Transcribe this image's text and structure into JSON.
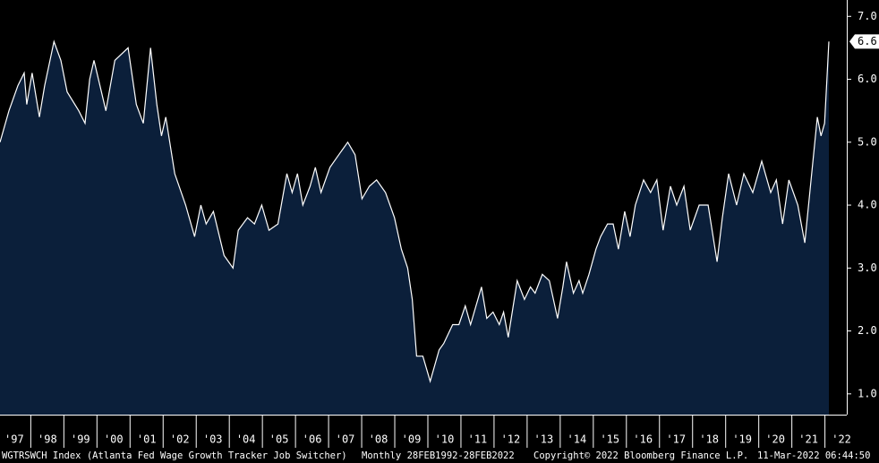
{
  "chart_data": {
    "type": "area",
    "x": [
      1997.07,
      1997.34,
      1997.61,
      1997.8,
      1997.88,
      1998.04,
      1998.26,
      1998.42,
      1998.7,
      1998.91,
      1999.1,
      1999.45,
      1999.64,
      1999.78,
      1999.91,
      2000.27,
      2000.54,
      2000.94,
      2001.19,
      2001.4,
      2001.62,
      2001.81,
      2001.95,
      2002.08,
      2002.35,
      2002.68,
      2002.95,
      2003.14,
      2003.3,
      2003.52,
      2003.84,
      2004.11,
      2004.27,
      2004.55,
      2004.76,
      2004.98,
      2005.2,
      2005.47,
      2005.74,
      2005.9,
      2006.06,
      2006.22,
      2006.44,
      2006.6,
      2006.77,
      2007.04,
      2007.31,
      2007.58,
      2007.8,
      2008.01,
      2008.23,
      2008.45,
      2008.72,
      2008.99,
      2009.2,
      2009.39,
      2009.53,
      2009.66,
      2009.85,
      2010.07,
      2010.34,
      2010.48,
      2010.75,
      2010.94,
      2011.13,
      2011.29,
      2011.62,
      2011.78,
      2011.97,
      2012.16,
      2012.29,
      2012.43,
      2012.7,
      2012.92,
      2013.1,
      2013.24,
      2013.46,
      2013.67,
      2013.92,
      2014.08,
      2014.19,
      2014.4,
      2014.57,
      2014.68,
      2014.87,
      2015.08,
      2015.22,
      2015.43,
      2015.6,
      2015.76,
      2015.95,
      2016.11,
      2016.27,
      2016.52,
      2016.73,
      2016.92,
      2017.11,
      2017.33,
      2017.52,
      2017.74,
      2017.93,
      2018.2,
      2018.47,
      2018.74,
      2018.9,
      2019.09,
      2019.33,
      2019.55,
      2019.82,
      2020.09,
      2020.36,
      2020.53,
      2020.72,
      2020.91,
      2021.18,
      2021.39,
      2021.58,
      2021.77,
      2021.88,
      2021.99,
      2022.06,
      2022.12
    ],
    "values": [
      5.0,
      5.5,
      5.9,
      6.1,
      5.6,
      6.1,
      5.4,
      5.9,
      6.6,
      6.3,
      5.8,
      5.5,
      5.3,
      6.0,
      6.3,
      5.5,
      6.3,
      6.5,
      5.6,
      5.3,
      6.5,
      5.6,
      5.1,
      5.4,
      4.5,
      4.0,
      3.5,
      4.0,
      3.7,
      3.9,
      3.2,
      3.0,
      3.6,
      3.8,
      3.7,
      4.0,
      3.6,
      3.7,
      4.5,
      4.2,
      4.5,
      4.0,
      4.3,
      4.6,
      4.2,
      4.6,
      4.8,
      5.0,
      4.8,
      4.1,
      4.3,
      4.4,
      4.2,
      3.8,
      3.3,
      3.0,
      2.5,
      1.6,
      1.6,
      1.2,
      1.7,
      1.8,
      2.1,
      2.1,
      2.4,
      2.1,
      2.7,
      2.2,
      2.3,
      2.1,
      2.3,
      1.9,
      2.8,
      2.5,
      2.7,
      2.6,
      2.9,
      2.8,
      2.2,
      2.7,
      3.1,
      2.6,
      2.8,
      2.6,
      2.9,
      3.3,
      3.5,
      3.7,
      3.7,
      3.3,
      3.9,
      3.5,
      4.0,
      4.4,
      4.2,
      4.4,
      3.6,
      4.3,
      4.0,
      4.3,
      3.6,
      4.0,
      4.0,
      3.1,
      3.8,
      4.5,
      4.0,
      4.5,
      4.2,
      4.7,
      4.2,
      4.4,
      3.7,
      4.4,
      4.0,
      3.4,
      4.4,
      5.4,
      5.1,
      5.3,
      6.0,
      6.6
    ],
    "color": "#ffffff",
    "fill_color": "#0b1f3a",
    "last_label": "6.6",
    "xlim": [
      1997.07,
      2022.66
    ],
    "ylim": [
      0.67,
      7.26
    ],
    "xticks": [
      {
        "value": 1997,
        "label": "'97"
      },
      {
        "value": 1998,
        "label": "'98"
      },
      {
        "value": 1999,
        "label": "'99"
      },
      {
        "value": 2000,
        "label": "'00"
      },
      {
        "value": 2001,
        "label": "'01"
      },
      {
        "value": 2002,
        "label": "'02"
      },
      {
        "value": 2003,
        "label": "'03"
      },
      {
        "value": 2004,
        "label": "'04"
      },
      {
        "value": 2005,
        "label": "'05"
      },
      {
        "value": 2006,
        "label": "'06"
      },
      {
        "value": 2007,
        "label": "'07"
      },
      {
        "value": 2008,
        "label": "'08"
      },
      {
        "value": 2009,
        "label": "'09"
      },
      {
        "value": 2010,
        "label": "'10"
      },
      {
        "value": 2011,
        "label": "'11"
      },
      {
        "value": 2012,
        "label": "'12"
      },
      {
        "value": 2013,
        "label": "'13"
      },
      {
        "value": 2014,
        "label": "'14"
      },
      {
        "value": 2015,
        "label": "'15"
      },
      {
        "value": 2016,
        "label": "'16"
      },
      {
        "value": 2017,
        "label": "'17"
      },
      {
        "value": 2018,
        "label": "'18"
      },
      {
        "value": 2019,
        "label": "'19"
      },
      {
        "value": 2020,
        "label": "'20"
      },
      {
        "value": 2021,
        "label": "'21"
      },
      {
        "value": 2022,
        "label": "'22"
      }
    ],
    "yticks": [
      {
        "value": 1,
        "label": "1.0"
      },
      {
        "value": 2,
        "label": "2.0"
      },
      {
        "value": 3,
        "label": "3.0"
      },
      {
        "value": 4,
        "label": "4.0"
      },
      {
        "value": 5,
        "label": "5.0"
      },
      {
        "value": 6,
        "label": "6.0"
      },
      {
        "value": 7,
        "label": "7.0"
      }
    ],
    "footer": [
      "WGTRSWCH Index (Atlanta Fed Wage Growth Tracker Job Switcher)",
      "Monthly 28FEB1992-28FEB2022",
      "Copyright© 2022 Bloomberg Finance L.P.",
      "11-Mar-2022 06:44:50"
    ]
  }
}
